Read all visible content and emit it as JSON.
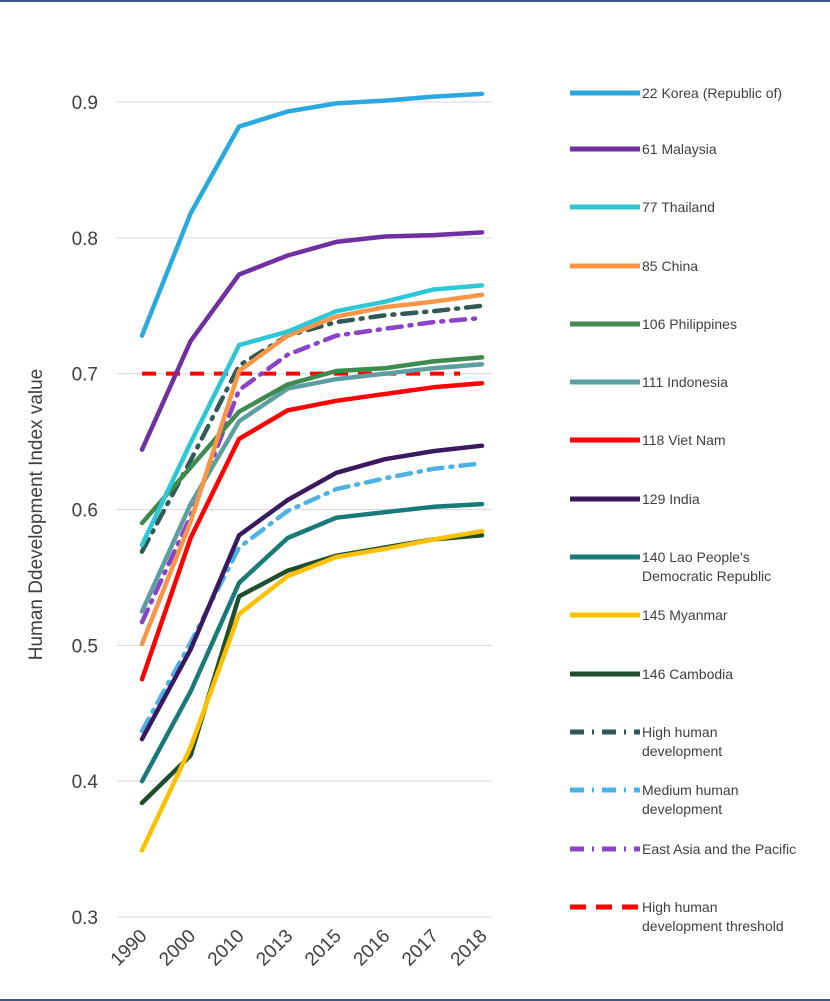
{
  "chart_data": {
    "type": "line",
    "title": "",
    "xlabel": "",
    "ylabel": "Human Ddevelopment Index value",
    "categories": [
      "1990",
      "2000",
      "2010",
      "2013",
      "2015",
      "2016",
      "2017",
      "2018"
    ],
    "ylim": [
      0.3,
      0.9
    ],
    "yticks": [
      "0.3",
      "0.4",
      "0.5",
      "0.6",
      "0.7",
      "0.8",
      "0.9"
    ],
    "grid": "horizontal",
    "legend_position": "right",
    "series": [
      {
        "name": "22 Korea (Republic of)",
        "color": "#29a9e0",
        "style": "solid",
        "values": [
          0.728,
          0.818,
          0.882,
          0.893,
          0.899,
          0.901,
          0.904,
          0.906
        ]
      },
      {
        "name": "61 Malaysia",
        "color": "#7030a0",
        "style": "solid",
        "values": [
          0.644,
          0.724,
          0.773,
          0.787,
          0.797,
          0.801,
          0.802,
          0.804
        ]
      },
      {
        "name": "77 Thailand",
        "color": "#2ec7d6",
        "style": "solid",
        "values": [
          0.574,
          0.649,
          0.721,
          0.731,
          0.746,
          0.753,
          0.762,
          0.765
        ]
      },
      {
        "name": "85 China",
        "color": "#f79646",
        "style": "solid",
        "values": [
          0.501,
          0.591,
          0.702,
          0.728,
          0.742,
          0.749,
          0.753,
          0.758
        ]
      },
      {
        "name": "106 Philippines",
        "color": "#3f8a4f",
        "style": "solid",
        "values": [
          0.59,
          0.631,
          0.672,
          0.692,
          0.702,
          0.704,
          0.709,
          0.712
        ]
      },
      {
        "name": "111 Indonesia",
        "color": "#5b9fa3",
        "style": "solid",
        "values": [
          0.525,
          0.604,
          0.665,
          0.689,
          0.696,
          0.7,
          0.704,
          0.707
        ]
      },
      {
        "name": "118 Viet Nam",
        "color": "#ff0000",
        "style": "solid",
        "values": [
          0.475,
          0.579,
          0.652,
          0.673,
          0.68,
          0.685,
          0.69,
          0.693
        ]
      },
      {
        "name": "129 India",
        "color": "#3a1a5e",
        "style": "solid",
        "values": [
          0.431,
          0.497,
          0.581,
          0.607,
          0.627,
          0.637,
          0.643,
          0.647
        ]
      },
      {
        "name": "140 Lao People's Democratic Republic",
        "color": "#1a7a7a",
        "style": "solid",
        "values": [
          0.4,
          0.466,
          0.546,
          0.579,
          0.594,
          0.598,
          0.602,
          0.604
        ]
      },
      {
        "name": "145 Myanmar",
        "color": "#ffc000",
        "style": "solid",
        "values": [
          0.349,
          0.425,
          0.523,
          0.551,
          0.565,
          0.571,
          0.578,
          0.584
        ]
      },
      {
        "name": "146 Cambodia",
        "color": "#1f4d2e",
        "style": "solid",
        "values": [
          0.384,
          0.419,
          0.536,
          0.555,
          0.566,
          0.572,
          0.578,
          0.581
        ]
      },
      {
        "name": "High human development",
        "color": "#2f5a55",
        "style": "dash-dot",
        "values": [
          0.569,
          0.636,
          0.706,
          0.728,
          0.738,
          0.743,
          0.746,
          0.75
        ]
      },
      {
        "name": "Medium human development",
        "color": "#4db3e6",
        "style": "dash-dot",
        "values": [
          0.437,
          0.502,
          0.572,
          0.599,
          0.615,
          0.623,
          0.63,
          0.634
        ]
      },
      {
        "name": "East Asia and the Pacific",
        "color": "#8b44c7",
        "style": "dash-dot",
        "values": [
          0.517,
          0.595,
          0.688,
          0.714,
          0.728,
          0.733,
          0.738,
          0.741
        ]
      },
      {
        "name": "High human development threshold",
        "color": "#ff0000",
        "style": "dashed",
        "values": [
          0.7,
          0.7,
          0.7,
          0.7,
          0.7,
          0.7,
          0.7,
          0.7
        ]
      }
    ],
    "legend_labels": [
      [
        "22 Korea (Republic of)"
      ],
      [
        "61 Malaysia"
      ],
      [
        "77 Thailand"
      ],
      [
        "85 China"
      ],
      [
        "106 Philippines"
      ],
      [
        "111 Indonesia"
      ],
      [
        "118 Viet Nam"
      ],
      [
        "129 India"
      ],
      [
        "140 Lao People's",
        "Democratic Republic"
      ],
      [
        "145 Myanmar"
      ],
      [
        "146 Cambodia"
      ],
      [
        "High human",
        "development"
      ],
      [
        "Medium human",
        "development"
      ],
      [
        "East Asia and the Pacific"
      ],
      [
        "High human",
        "development threshold"
      ]
    ]
  }
}
